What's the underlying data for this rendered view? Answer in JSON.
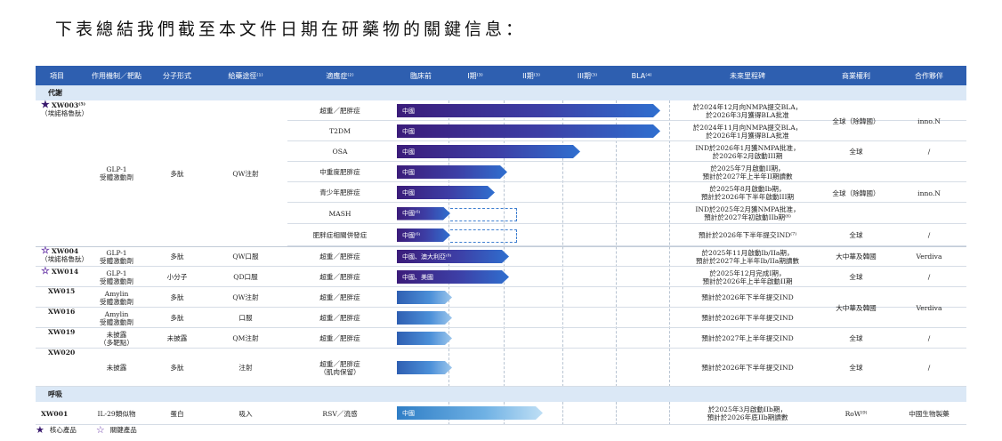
{
  "heading": "下表總結我們截至本文件日期在研藥物的關鍵信息：",
  "columns": [
    "項目",
    "作用機制／靶點",
    "分子形式",
    "給藥途徑⁽¹⁾",
    "適應症⁽²⁾",
    "臨床前",
    "I期⁽³⁾",
    "II期⁽³⁾",
    "III期⁽³⁾",
    "BLA⁽⁴⁾",
    "未來里程碑",
    "商業權利",
    "合作夥伴"
  ],
  "sections": {
    "metabolic": "代謝",
    "respiratory": "呼吸"
  },
  "xw003": {
    "name": "XW003⁽⁵⁾",
    "alias": "（埃諾格魯肽）",
    "mechanism": "GLP-1\n受體激動劑",
    "form": "多肽",
    "route": "QW注射"
  },
  "xw003_rows": [
    {
      "indication": "超重／肥胖症",
      "bar_label": "中國",
      "milestone": "於2024年12月向NMPA提交BLA，\n於2026年3月獲得BLA批准"
    },
    {
      "indication": "T2DM",
      "bar_label": "中國",
      "milestone": "於2024年11月向NMPA提交BLA，\n於2026年1月獲得BLA批准"
    },
    {
      "indication": "OSA",
      "bar_label": "中國",
      "milestone": "IND於2026年1月獲NMPA批准，\n於2026年2月啟動III期"
    },
    {
      "indication": "中重度肥胖症",
      "bar_label": "中國",
      "milestone": "於2025年7月啟動II期，\n預計於2027年上半年II期讀數"
    },
    {
      "indication": "青少年肥胖症",
      "bar_label": "中國",
      "milestone": "於2025年8月啟動Ib期，\n預計於2026年下半年啟動III期"
    },
    {
      "indication": "MASH",
      "bar_label": "中國⁽⁶⁾",
      "milestone": "IND於2025年2月獲NMPA批准，\n預計於2027年初啟動IIb期⁽⁶⁾"
    },
    {
      "indication": "肥胖症相關併發症",
      "bar_label": "中國⁽⁶⁾",
      "milestone": "預計於2026年下半年提交IND⁽⁷⁾"
    }
  ],
  "xw003_rights": [
    "全球（除韓國）",
    "全球",
    "全球（除韓國）",
    "全球"
  ],
  "xw003_partners": [
    "inno.N",
    "/",
    "inno.N",
    "/"
  ],
  "other_rows": [
    {
      "name": "XW004",
      "alias": "（埃諾格魯肽）",
      "mechanism": "GLP-1\n受體激動劑",
      "form": "多肽",
      "route": "QW口服",
      "indication": "超重／肥胖症",
      "bar_label": "中國、澳大利亞⁽⁸⁾",
      "milestone": "於2025年11月啟動Ib/IIa期，\n預計於2027年上半年Ib/IIa期讀數",
      "rights": "大中華及韓國",
      "partner": "Verdiva"
    },
    {
      "name": "XW014",
      "alias": "",
      "mechanism": "GLP-1\n受體激動劑",
      "form": "小分子",
      "route": "QD口服",
      "indication": "超重／肥胖症",
      "bar_label": "中國、美國",
      "milestone": "於2025年12月完成I期，\n預計於2026年上半年啟動II期",
      "rights": "全球",
      "partner": "/"
    },
    {
      "name": "XW015",
      "alias": "",
      "mechanism": "Amylin\n受體激動劑",
      "form": "多肽",
      "route": "QW注射",
      "indication": "超重／肥胖症",
      "bar_label": "",
      "milestone": "預計於2026年下半年提交IND",
      "rights": "大中華及韓國",
      "partner": "Verdiva"
    },
    {
      "name": "XW016",
      "alias": "",
      "mechanism": "Amylin\n受體激動劑",
      "form": "多肽",
      "route": "口服",
      "indication": "超重／肥胖症",
      "bar_label": "",
      "milestone": "預計於2026年下半年提交IND",
      "rights": "",
      "partner": ""
    },
    {
      "name": "XW019",
      "alias": "",
      "mechanism": "未披露\n（多靶點）",
      "form": "未披露",
      "route": "QM注射",
      "indication": "超重／肥胖症",
      "bar_label": "",
      "milestone": "預計於2027年上半年提交IND",
      "rights": "全球",
      "partner": "/"
    },
    {
      "name": "XW020",
      "alias": "",
      "mechanism": "未披露",
      "form": "多肽",
      "route": "注射",
      "indication": "超重／肥胖症\n（肌肉保留）",
      "bar_label": "",
      "milestone": "預計於2026年下半年提交IND",
      "rights": "全球",
      "partner": "/"
    }
  ],
  "xw001": {
    "name": "XW001",
    "mechanism": "IL-29類似物",
    "form": "蛋白",
    "route": "吸入",
    "indication": "RSV／流感",
    "bar_label": "中國",
    "milestone": "於2025年3月啟動IIb期，\n預計於2026年底IIb期讀數",
    "rights": "RoW⁽⁹⁾",
    "partner": "中國生物製藥"
  },
  "legend": {
    "core": "核心產品",
    "key": "關鍵產品"
  },
  "icons": {
    "core_star": "★",
    "key_star": "☆"
  },
  "colors": {
    "header": "#2e5fb0",
    "section": "#dbe8f6",
    "core_star": "#3a1a6e",
    "key_star": "#6a3aa8"
  }
}
